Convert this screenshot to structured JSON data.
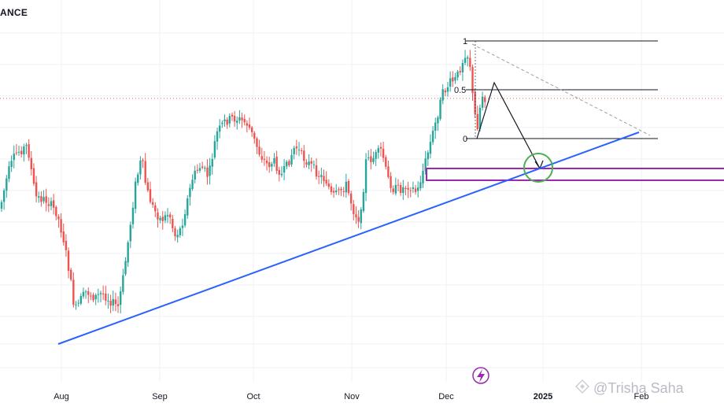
{
  "title": "ANCE",
  "watermark": "@Trisha Saha",
  "colors": {
    "up": "#26a69a",
    "down": "#ef5350",
    "trendline": "#2962ff",
    "zone": "#9c27b0",
    "circle": "#4caf50",
    "dotted_level": "#ef5350",
    "grid": "#eef0f3",
    "text": "#131722",
    "lightning": "#9c27b0"
  },
  "chart_data": {
    "type": "candlestick",
    "title": "ANCE",
    "x_axis": {
      "tick_labels": [
        "Aug",
        "Sep",
        "Oct",
        "Nov",
        "Dec",
        "2025",
        "Feb"
      ],
      "bold_ticks": [
        "2025"
      ]
    },
    "y_axis": {
      "visible": false
    },
    "grid": true,
    "fib_levels": [
      {
        "label": "1",
        "level": 1
      },
      {
        "label": "0.5",
        "level": 0.5
      },
      {
        "label": "0",
        "level": 0
      }
    ],
    "annotations": [
      "ascending support trendline",
      "purple support zone",
      "green circle at trendline and zone confluence",
      "projected zigzag path into support",
      "dashed descending line from the high",
      "dotted horizontal level"
    ]
  }
}
